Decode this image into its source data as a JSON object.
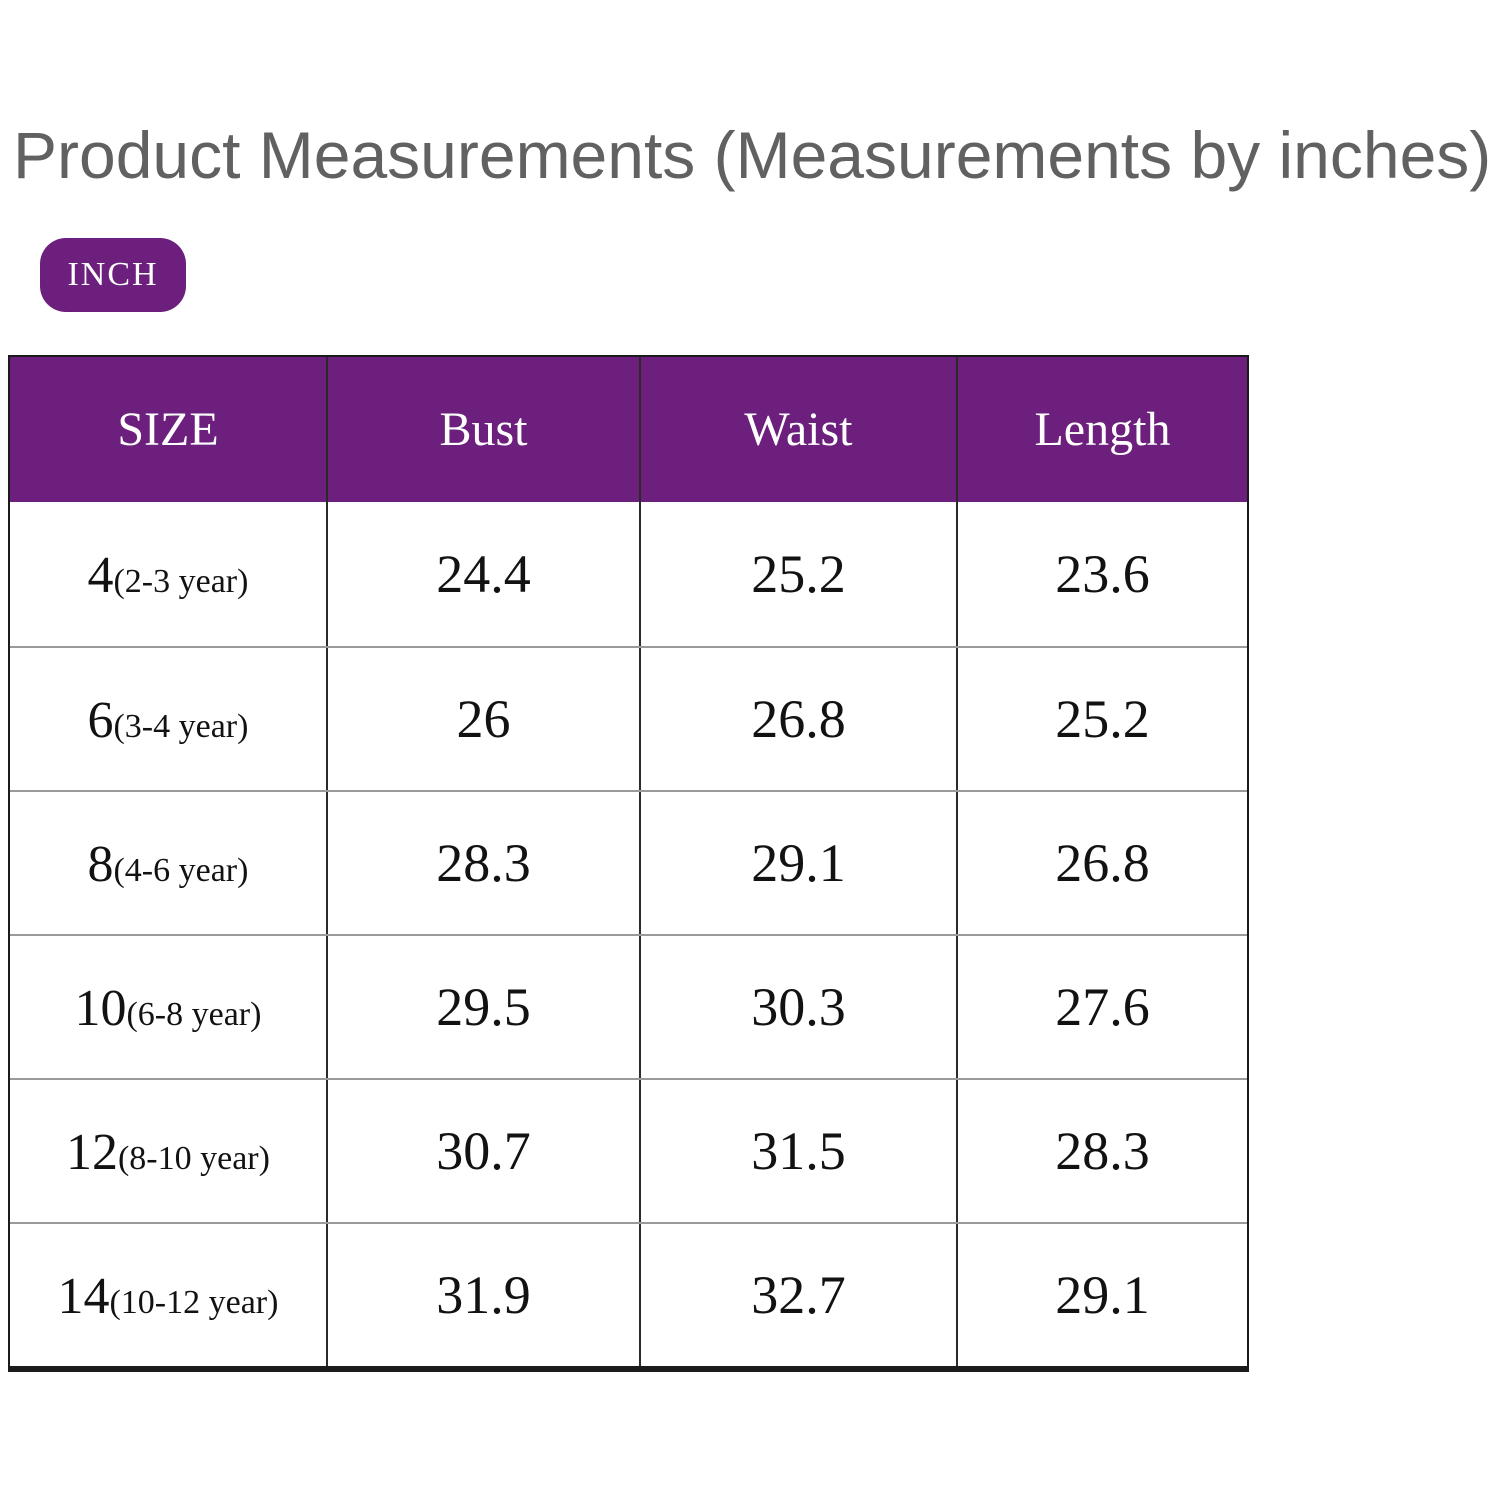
{
  "title": "Product Measurements (Measurements by inches)",
  "unit_badge": "INCH",
  "colors": {
    "accent_purple": "#6C1F7C",
    "title_gray": "#616161",
    "row_divider_gray": "#9a9a9a",
    "table_border_black": "#1b1b1b"
  },
  "table": {
    "headers": [
      "SIZE",
      "Bust",
      "Waist",
      "Length"
    ],
    "rows": [
      {
        "size": "4",
        "age": "(2-3 year)",
        "bust": "24.4",
        "waist": "25.2",
        "length": "23.6"
      },
      {
        "size": "6",
        "age": "(3-4 year)",
        "bust": "26",
        "waist": "26.8",
        "length": "25.2"
      },
      {
        "size": "8",
        "age": "(4-6 year)",
        "bust": "28.3",
        "waist": "29.1",
        "length": "26.8"
      },
      {
        "size": "10",
        "age": "(6-8 year)",
        "bust": "29.5",
        "waist": "30.3",
        "length": "27.6"
      },
      {
        "size": "12",
        "age": "(8-10 year)",
        "bust": "30.7",
        "waist": "31.5",
        "length": "28.3"
      },
      {
        "size": "14",
        "age": "(10-12 year)",
        "bust": "31.9",
        "waist": "32.7",
        "length": "29.1"
      }
    ]
  },
  "chart_data": {
    "type": "table",
    "title": "Product Measurements (Measurements by inches)",
    "unit": "inches",
    "columns": [
      "SIZE",
      "Bust",
      "Waist",
      "Length"
    ],
    "rows": [
      [
        "4(2-3 year)",
        24.4,
        25.2,
        23.6
      ],
      [
        "6(3-4 year)",
        26,
        26.8,
        25.2
      ],
      [
        "8(4-6 year)",
        28.3,
        29.1,
        26.8
      ],
      [
        "10(6-8 year)",
        29.5,
        30.3,
        27.6
      ],
      [
        "12(8-10 year)",
        30.7,
        31.5,
        28.3
      ],
      [
        "14(10-12 year)",
        31.9,
        32.7,
        29.1
      ]
    ],
    "series": [
      {
        "name": "Bust",
        "values": [
          24.4,
          26,
          28.3,
          29.5,
          30.7,
          31.9
        ]
      },
      {
        "name": "Waist",
        "values": [
          25.2,
          26.8,
          29.1,
          30.3,
          31.5,
          32.7
        ]
      },
      {
        "name": "Length",
        "values": [
          23.6,
          25.2,
          26.8,
          27.6,
          28.3,
          29.1
        ]
      }
    ],
    "categories": [
      "4(2-3 year)",
      "6(3-4 year)",
      "8(4-6 year)",
      "10(6-8 year)",
      "12(8-10 year)",
      "14(10-12 year)"
    ]
  }
}
